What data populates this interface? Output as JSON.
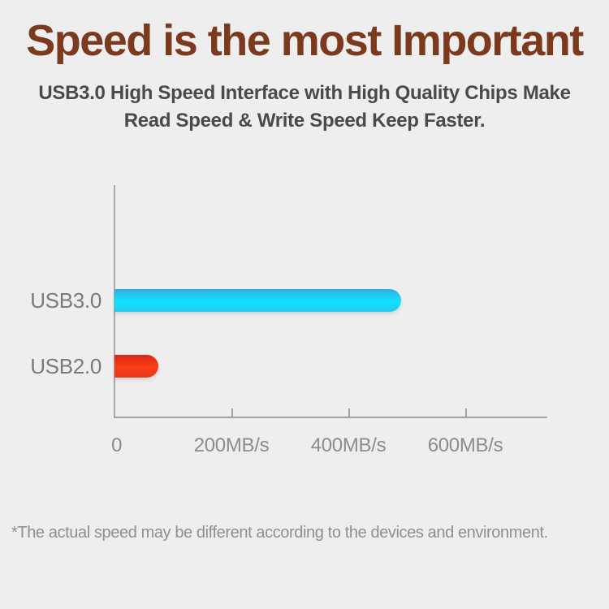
{
  "header": {
    "title": "Speed is the most Important",
    "subtitle_line1": "USB3.0 High Speed Interface with High Quality Chips Make",
    "subtitle_line2": "Read Speed & Write Speed Keep Faster."
  },
  "chart_data": {
    "type": "bar",
    "orientation": "horizontal",
    "title": "",
    "xlabel": "",
    "ylabel": "",
    "categories": [
      "USB3.0",
      "USB2.0"
    ],
    "values": [
      490,
      75
    ],
    "unit": "MB/s",
    "xlim": [
      0,
      740
    ],
    "x_ticks": [
      {
        "value": 0,
        "label": "0",
        "has_mark": false
      },
      {
        "value": 200,
        "label": "200MB/s",
        "has_mark": true
      },
      {
        "value": 400,
        "label": "400MB/s",
        "has_mark": true
      },
      {
        "value": 600,
        "label": "600MB/s",
        "has_mark": true
      }
    ],
    "grid": false,
    "legend": false,
    "bar_colors": [
      {
        "series": "USB3.0",
        "top": "#33aee0",
        "mid": "#0fe3ff",
        "bottom": "#25c8ec"
      },
      {
        "series": "USB2.0",
        "top": "#d9291b",
        "mid": "#fd3d12",
        "bottom": "#e23a1e"
      }
    ]
  },
  "footer": {
    "note": "*The actual speed may be different according to the devices and environment."
  },
  "colors": {
    "background": "#eeeeee",
    "title": "#7b3a1d",
    "subtitle": "#4a4a4a",
    "axis": "#a2a2a2",
    "tick_label": "#8c8c8c",
    "category_label": "#7a7a7a",
    "footnote": "#8f8f8f"
  }
}
